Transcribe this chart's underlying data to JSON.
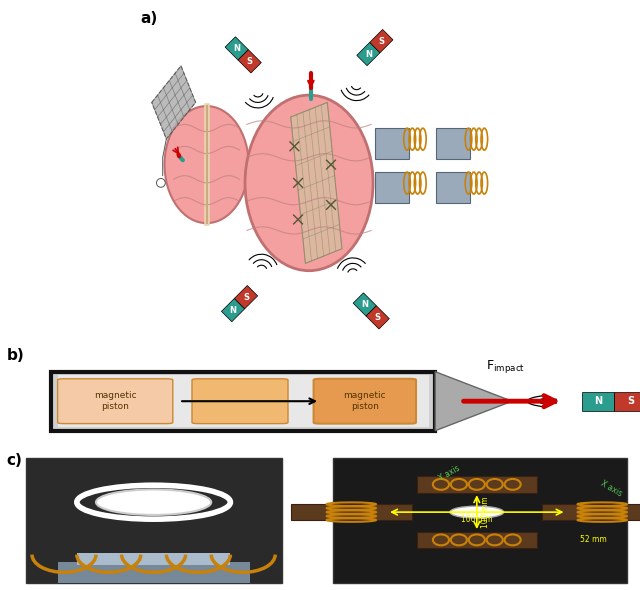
{
  "fig_width": 6.4,
  "fig_height": 5.9,
  "bg_color": "#ffffff",
  "panel_a_label": "a)",
  "panel_b_label": "b)",
  "panel_c_label": "c)",
  "tissue_color": "#F4A0A0",
  "tissue_stroke": "#C07070",
  "magnet_N_color": "#2A9D8F",
  "magnet_S_color": "#C0392B",
  "piston_color_light": "#F5CBA7",
  "piston_color_dark": "#E59A50",
  "arrow_color": "#CC0000",
  "box_bg": "#E8E8E8",
  "box_stroke": "#111111",
  "impact_label": "F$_{impact}$",
  "piston_label": "magnetic\npiston"
}
